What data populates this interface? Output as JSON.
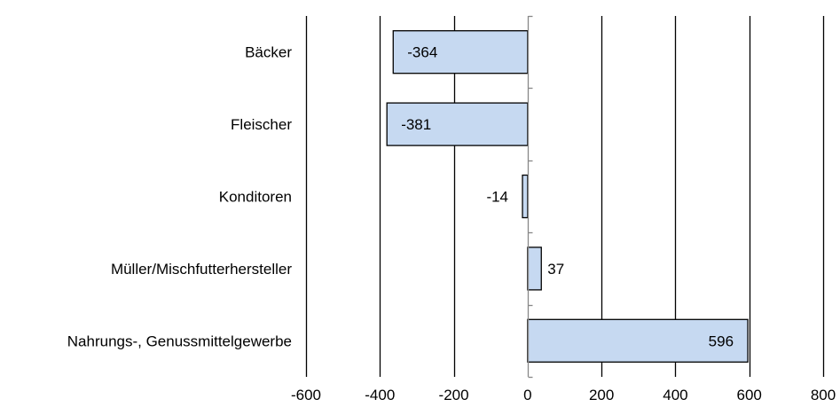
{
  "chart_data": {
    "type": "bar",
    "orientation": "horizontal",
    "categories": [
      "Bäcker",
      "Fleischer",
      "Konditoren",
      "Müller/Mischfutterhersteller",
      "Nahrungs-, Genussmittelgewerbe"
    ],
    "values": [
      -364,
      -381,
      -14,
      37,
      596
    ],
    "data_labels": [
      "-364",
      "-381",
      "-14",
      "37",
      "596"
    ],
    "xlim": [
      -600,
      800
    ],
    "x_ticks": [
      -600,
      -400,
      -200,
      0,
      200,
      400,
      600,
      800
    ],
    "x_tick_labels": [
      "-600",
      "-400",
      "-200",
      "0",
      "200",
      "400",
      "600",
      "800"
    ],
    "grid": "vertical",
    "legend": "none",
    "colors": {
      "bar_fill": "#c6d9f1",
      "bar_stroke": "#000000",
      "grid": "#000000",
      "text": "#000000"
    }
  }
}
